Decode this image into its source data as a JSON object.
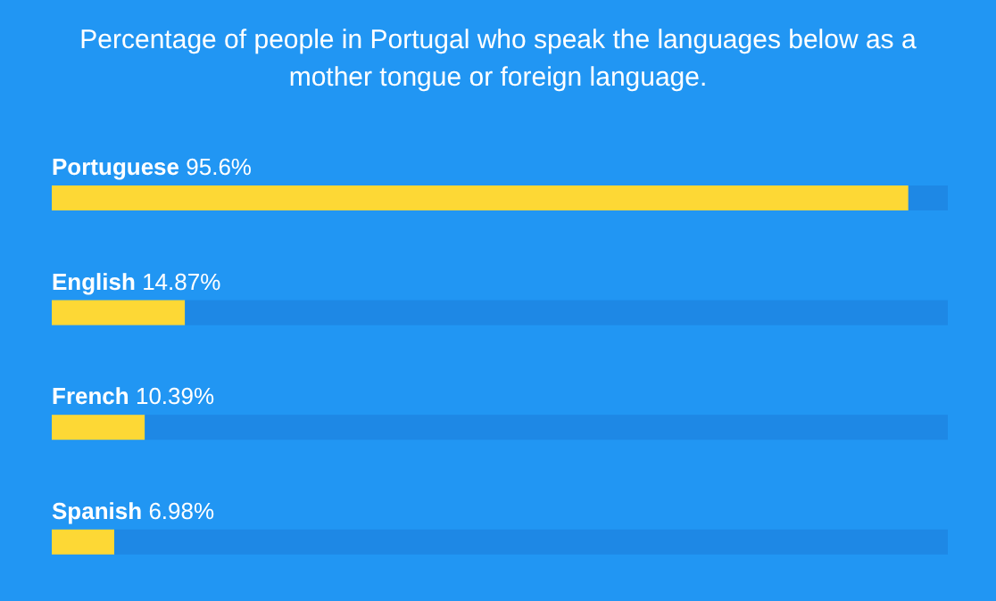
{
  "chart_data": {
    "type": "bar",
    "orientation": "horizontal",
    "stacked": true,
    "title": "Percentage of people in Portugal who speak the languages below as a mother tongue or foreign language.",
    "categories": [
      "Portuguese",
      "English",
      "French",
      "Spanish"
    ],
    "series": [
      {
        "color": "#fdd835",
        "values": [
          95.6,
          14.87,
          10.39,
          6.98
        ],
        "value_labels": [
          "95.6%",
          "14.87%",
          "10.39%",
          "6.98%"
        ]
      },
      {
        "color": "#1e88e5",
        "values": [
          4.4,
          85.13,
          89.61,
          93.02
        ]
      }
    ],
    "tick_labels": "y"
  }
}
